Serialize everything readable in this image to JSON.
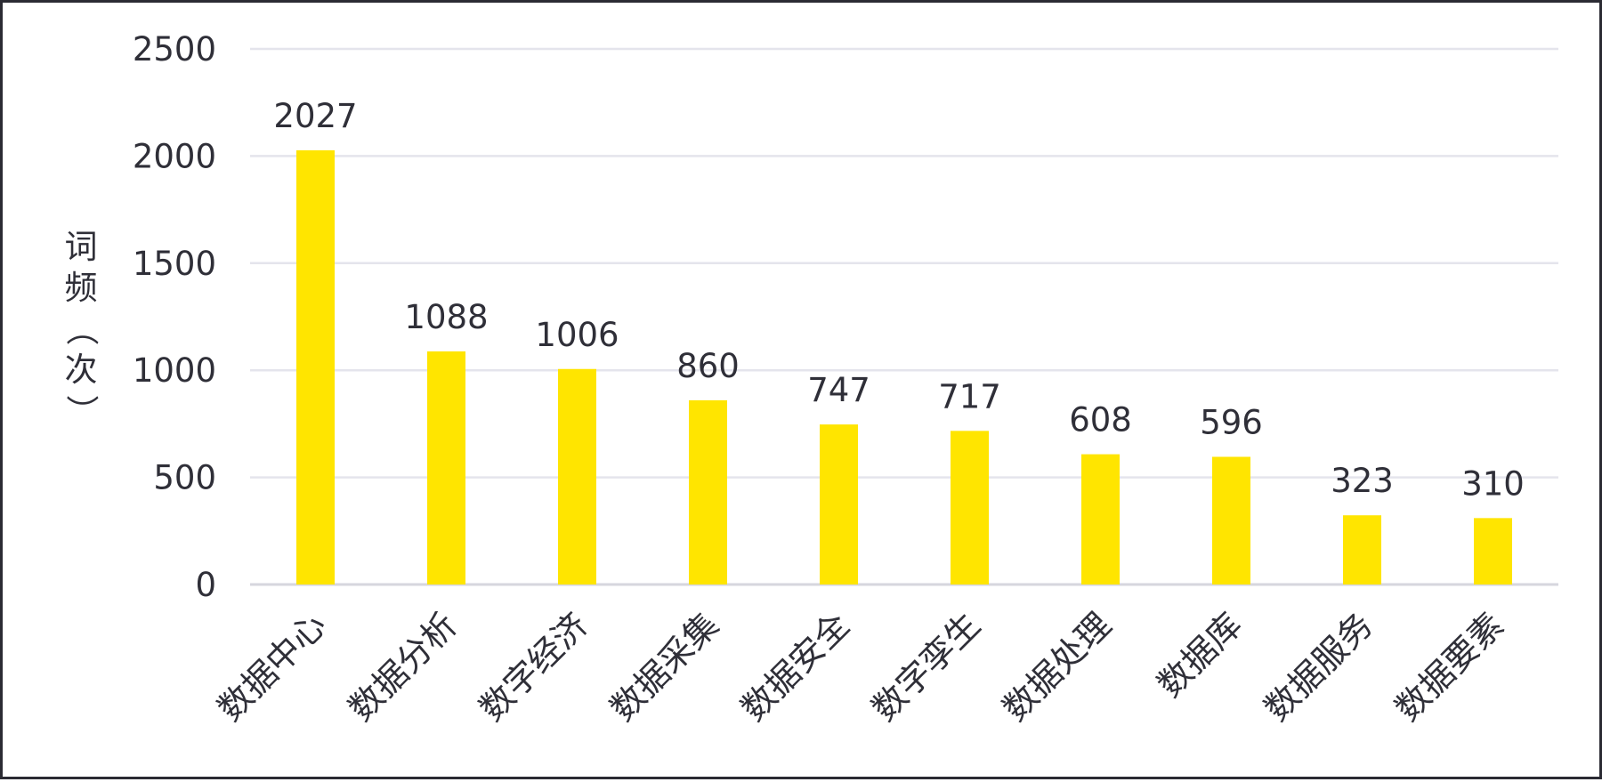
{
  "chart_data": {
    "type": "bar",
    "title": "",
    "xlabel": "",
    "ylabel": "词频（次）",
    "categories": [
      "数据中心",
      "数据分析",
      "数字经济",
      "数据采集",
      "数据安全",
      "数字孪生",
      "数据处理",
      "数据库",
      "数据服务",
      "数据要素"
    ],
    "values": [
      2027,
      1088,
      1006,
      860,
      747,
      717,
      608,
      596,
      323,
      310
    ],
    "ylim": [
      0,
      2500
    ],
    "yticks": [
      0,
      500,
      1000,
      1500,
      2000,
      2500
    ],
    "grid": true,
    "legend": "none",
    "bar_color": "#FFE500",
    "grid_color": "#E4E4EC"
  }
}
